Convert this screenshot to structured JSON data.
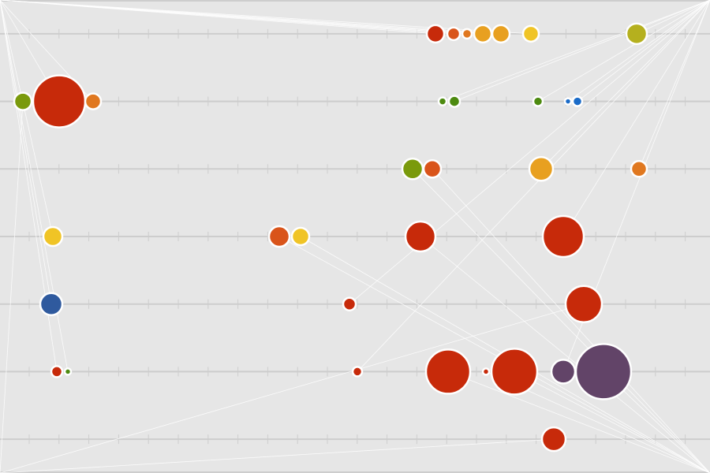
{
  "chart_data": {
    "type": "scatter",
    "title": "",
    "xlabel": "",
    "ylabel": "",
    "xlim": [
      0,
      900
    ],
    "ylim": [
      0.5,
      7.5
    ],
    "lanes": [
      1,
      2,
      3,
      4,
      5,
      6,
      7
    ],
    "grid": true,
    "legend": "none",
    "anchors": [
      {
        "id": "top-left",
        "x": 0,
        "y": 0.5
      },
      {
        "id": "top-right",
        "x": 900,
        "y": 0.5
      },
      {
        "id": "bottom-left",
        "x": 0,
        "y": 7.5
      },
      {
        "id": "bottom-right",
        "x": 900,
        "y": 7.5
      }
    ],
    "points": [
      {
        "x": 552,
        "lane": 1,
        "size": 11,
        "color": "#c72a0a",
        "link": "top-left"
      },
      {
        "x": 575,
        "lane": 1,
        "size": 8,
        "color": "#d9541a",
        "link": "top-left"
      },
      {
        "x": 592,
        "lane": 1,
        "size": 6,
        "color": "#e07820",
        "link": "top-left"
      },
      {
        "x": 612,
        "lane": 1,
        "size": 11,
        "color": "#e8a020",
        "link": "top-left"
      },
      {
        "x": 635,
        "lane": 1,
        "size": 11,
        "color": "#e8a020",
        "link": "top-left"
      },
      {
        "x": 673,
        "lane": 1,
        "size": 10,
        "color": "#f0c426",
        "link": "top-left"
      },
      {
        "x": 807,
        "lane": 1,
        "size": 13,
        "color": "#b5b01e",
        "link": "top-right"
      },
      {
        "x": 29,
        "lane": 2,
        "size": 11,
        "color": "#7a9a0c",
        "link": "bottom-left"
      },
      {
        "x": 75,
        "lane": 2,
        "size": 33,
        "color": "#c72a0a",
        "link": "top-left"
      },
      {
        "x": 118,
        "lane": 2,
        "size": 10,
        "color": "#e07820",
        "link": "top-left"
      },
      {
        "x": 561,
        "lane": 2,
        "size": 5,
        "color": "#4d8a10",
        "link": "top-right"
      },
      {
        "x": 576,
        "lane": 2,
        "size": 7,
        "color": "#4d8a10",
        "link": "top-right"
      },
      {
        "x": 682,
        "lane": 2,
        "size": 6,
        "color": "#4d8a10",
        "link": "top-right"
      },
      {
        "x": 720,
        "lane": 2,
        "size": 4,
        "color": "#1a6bc8",
        "link": "top-right"
      },
      {
        "x": 732,
        "lane": 2,
        "size": 6,
        "color": "#1a6bc8",
        "link": "top-right"
      },
      {
        "x": 523,
        "lane": 3,
        "size": 13,
        "color": "#7a9a0c",
        "link": "bottom-right"
      },
      {
        "x": 548,
        "lane": 3,
        "size": 11,
        "color": "#d9541a",
        "link": "bottom-right"
      },
      {
        "x": 686,
        "lane": 3,
        "size": 15,
        "color": "#e8a020",
        "link": "top-right"
      },
      {
        "x": 810,
        "lane": 3,
        "size": 10,
        "color": "#e07820",
        "link": "top-right"
      },
      {
        "x": 67,
        "lane": 4,
        "size": 12,
        "color": "#f0c426",
        "link": "top-left"
      },
      {
        "x": 354,
        "lane": 4,
        "size": 13,
        "color": "#d9541a",
        "link": "bottom-right"
      },
      {
        "x": 381,
        "lane": 4,
        "size": 11,
        "color": "#f0c426",
        "link": "bottom-right"
      },
      {
        "x": 533,
        "lane": 4,
        "size": 19,
        "color": "#c72a0a",
        "link": "bottom-right"
      },
      {
        "x": 714,
        "lane": 4,
        "size": 26,
        "color": "#c72a0a",
        "link": "top-right"
      },
      {
        "x": 65,
        "lane": 5,
        "size": 14,
        "color": "#2f5a9e",
        "link": "top-left"
      },
      {
        "x": 443,
        "lane": 5,
        "size": 8,
        "color": "#c72a0a",
        "link": "top-right"
      },
      {
        "x": 740,
        "lane": 5,
        "size": 23,
        "color": "#c72a0a",
        "link": "bottom-left"
      },
      {
        "x": 72,
        "lane": 6,
        "size": 7,
        "color": "#c72a0a",
        "link": "top-left"
      },
      {
        "x": 86,
        "lane": 6,
        "size": 4,
        "color": "#4d8a10",
        "link": "top-left"
      },
      {
        "x": 453,
        "lane": 6,
        "size": 6,
        "color": "#c72a0a",
        "link": "top-right"
      },
      {
        "x": 568,
        "lane": 6,
        "size": 28,
        "color": "#c72a0a",
        "link": "bottom-right"
      },
      {
        "x": 616,
        "lane": 6,
        "size": 4,
        "color": "#c72a0a",
        "link": "bottom-right"
      },
      {
        "x": 652,
        "lane": 6,
        "size": 29,
        "color": "#c72a0a",
        "link": "bottom-right"
      },
      {
        "x": 714,
        "lane": 6,
        "size": 15,
        "color": "#624468",
        "link": "top-right"
      },
      {
        "x": 765,
        "lane": 6,
        "size": 35,
        "color": "#624468",
        "link": "bottom-right"
      },
      {
        "x": 702,
        "lane": 7,
        "size": 15,
        "color": "#c72a0a",
        "link": "bottom-left"
      }
    ]
  }
}
